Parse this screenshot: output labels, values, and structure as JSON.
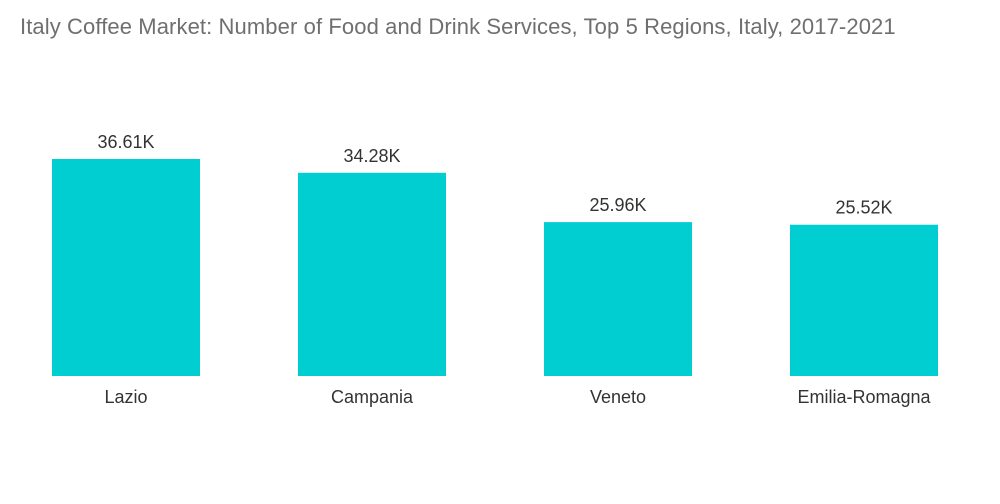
{
  "chart_data": {
    "type": "bar",
    "title": "Italy Coffee Market: Number of Food and Drink Services, Top 5 Regions, Italy, 2017-2021",
    "categories": [
      "Lazio",
      "Campania",
      "Veneto",
      "Emilia-Romagna"
    ],
    "values": [
      36.61,
      34.28,
      25.96,
      25.52
    ],
    "data_labels": [
      "36.61K",
      "34.28K",
      "25.96K",
      "25.52K"
    ],
    "unit": "K",
    "xlabel": "",
    "ylabel": "",
    "ylim": [
      0,
      36.61
    ],
    "grid": false,
    "legend": "none",
    "colors": {
      "bar": "#00CED1",
      "text": "#333333",
      "title": "#6f6f6f"
    }
  }
}
